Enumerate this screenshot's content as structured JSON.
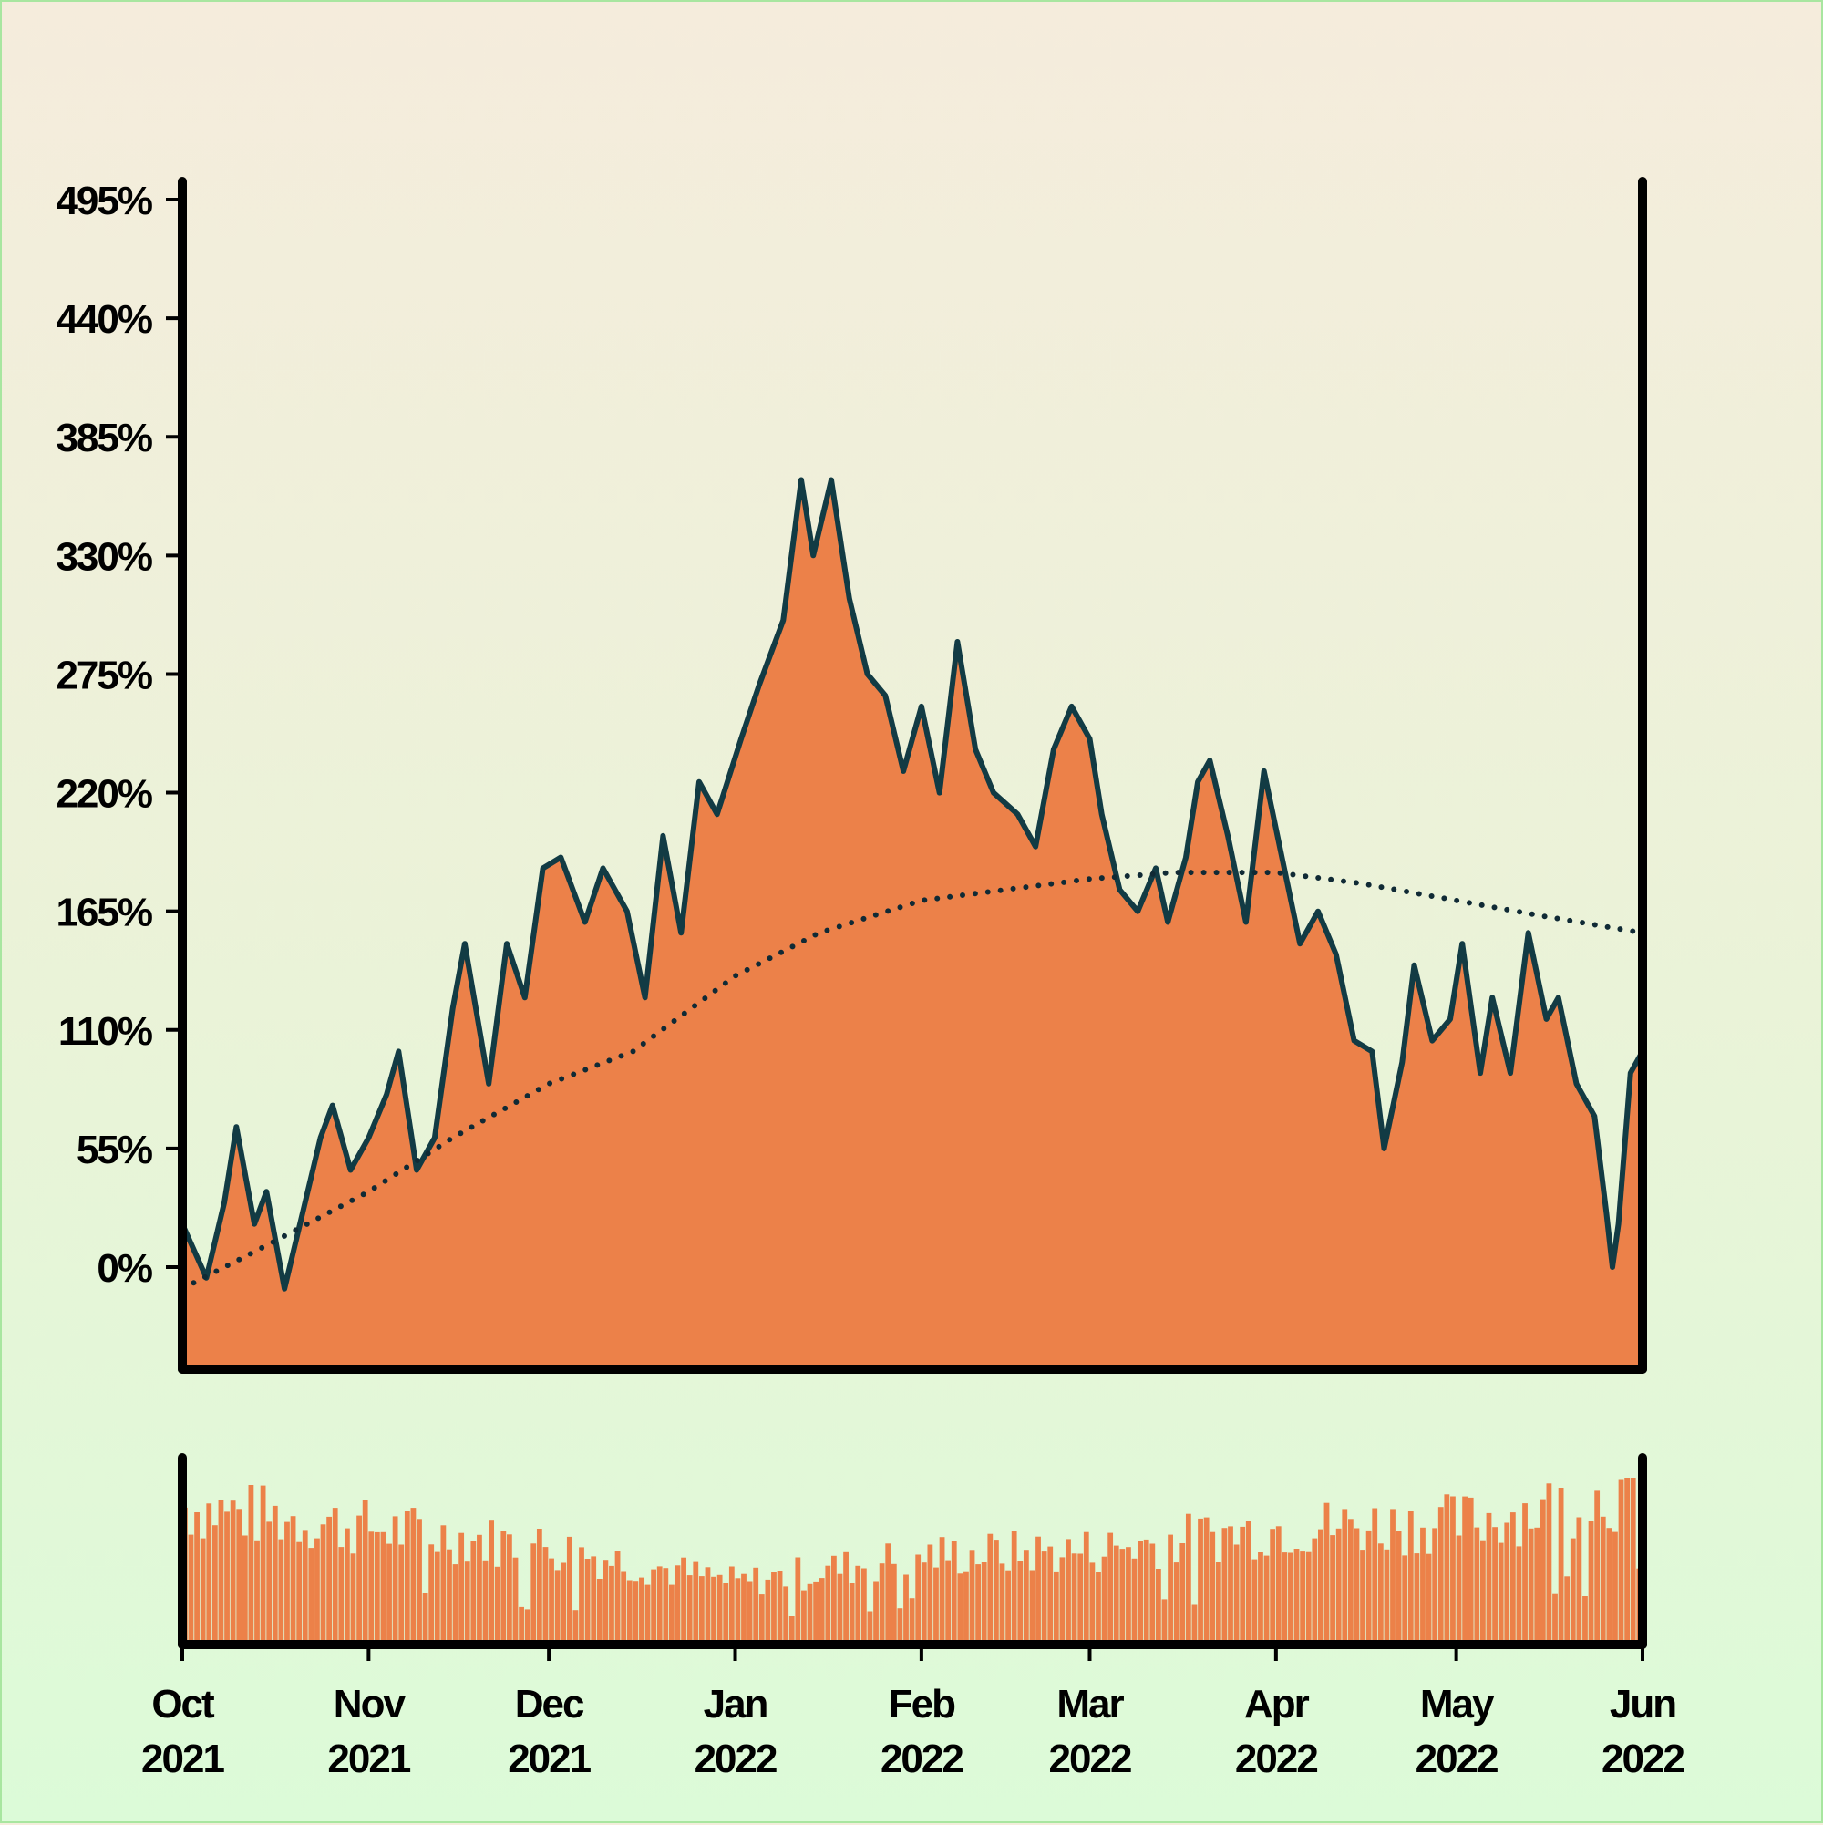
{
  "colors": {
    "area_fill": "#ec8149",
    "line": "#123b44",
    "trend": "#102a35",
    "axis": "#000000",
    "volume": "#ec8149"
  },
  "chart_data": {
    "type": "area",
    "title": "",
    "xlabel": "",
    "ylabel": "",
    "x_range": [
      "2021-10-01",
      "2022-06-01"
    ],
    "ylim": [
      -65,
      505
    ],
    "y_ticks": [
      {
        "value": 0,
        "label": "0%"
      },
      {
        "value": 55,
        "label": "55%"
      },
      {
        "value": 110,
        "label": "110%"
      },
      {
        "value": 165,
        "label": "165%"
      },
      {
        "value": 220,
        "label": "220%"
      },
      {
        "value": 275,
        "label": "275%"
      },
      {
        "value": 330,
        "label": "330%"
      },
      {
        "value": 385,
        "label": "385%"
      },
      {
        "value": 440,
        "label": "440%"
      },
      {
        "value": 495,
        "label": "495%"
      }
    ],
    "x_ticks": [
      {
        "date": "2021-10-01",
        "month": "Oct",
        "year": "2021"
      },
      {
        "date": "2021-11-01",
        "month": "Nov",
        "year": "2021"
      },
      {
        "date": "2021-12-01",
        "month": "Dec",
        "year": "2021"
      },
      {
        "date": "2022-01-01",
        "month": "Jan",
        "year": "2022"
      },
      {
        "date": "2022-02-01",
        "month": "Feb",
        "year": "2022"
      },
      {
        "date": "2022-03-01",
        "month": "Mar",
        "year": "2022"
      },
      {
        "date": "2022-04-01",
        "month": "Apr",
        "year": "2022"
      },
      {
        "date": "2022-05-01",
        "month": "May",
        "year": "2022"
      },
      {
        "date": "2022-06-01",
        "month": "Jun",
        "year": "2022"
      }
    ],
    "series": [
      {
        "kind": "cumulative_return_area",
        "points": [
          [
            "2021-10-01",
            20
          ],
          [
            "2021-10-05",
            -5
          ],
          [
            "2021-10-08",
            30
          ],
          [
            "2021-10-10",
            65
          ],
          [
            "2021-10-13",
            20
          ],
          [
            "2021-10-15",
            35
          ],
          [
            "2021-10-18",
            -10
          ],
          [
            "2021-10-21",
            25
          ],
          [
            "2021-10-24",
            60
          ],
          [
            "2021-10-26",
            75
          ],
          [
            "2021-10-29",
            45
          ],
          [
            "2021-11-01",
            60
          ],
          [
            "2021-11-04",
            80
          ],
          [
            "2021-11-06",
            100
          ],
          [
            "2021-11-09",
            45
          ],
          [
            "2021-11-12",
            60
          ],
          [
            "2021-11-15",
            120
          ],
          [
            "2021-11-17",
            150
          ],
          [
            "2021-11-21",
            85
          ],
          [
            "2021-11-24",
            150
          ],
          [
            "2021-11-27",
            125
          ],
          [
            "2021-11-30",
            185
          ],
          [
            "2021-12-03",
            190
          ],
          [
            "2021-12-07",
            160
          ],
          [
            "2021-12-10",
            185
          ],
          [
            "2021-12-14",
            165
          ],
          [
            "2021-12-17",
            125
          ],
          [
            "2021-12-20",
            200
          ],
          [
            "2021-12-23",
            155
          ],
          [
            "2021-12-26",
            225
          ],
          [
            "2021-12-29",
            210
          ],
          [
            "2022-01-02",
            245
          ],
          [
            "2022-01-05",
            270
          ],
          [
            "2022-01-09",
            300
          ],
          [
            "2022-01-12",
            365
          ],
          [
            "2022-01-14",
            330
          ],
          [
            "2022-01-17",
            365
          ],
          [
            "2022-01-20",
            310
          ],
          [
            "2022-01-23",
            275
          ],
          [
            "2022-01-26",
            265
          ],
          [
            "2022-01-29",
            230
          ],
          [
            "2022-02-01",
            260
          ],
          [
            "2022-02-04",
            220
          ],
          [
            "2022-02-07",
            290
          ],
          [
            "2022-02-10",
            240
          ],
          [
            "2022-02-13",
            220
          ],
          [
            "2022-02-17",
            210
          ],
          [
            "2022-02-20",
            195
          ],
          [
            "2022-02-23",
            240
          ],
          [
            "2022-02-26",
            260
          ],
          [
            "2022-03-01",
            245
          ],
          [
            "2022-03-03",
            210
          ],
          [
            "2022-03-06",
            175
          ],
          [
            "2022-03-09",
            165
          ],
          [
            "2022-03-12",
            185
          ],
          [
            "2022-03-14",
            160
          ],
          [
            "2022-03-17",
            190
          ],
          [
            "2022-03-19",
            225
          ],
          [
            "2022-03-21",
            235
          ],
          [
            "2022-03-24",
            200
          ],
          [
            "2022-03-27",
            160
          ],
          [
            "2022-03-30",
            230
          ],
          [
            "2022-04-02",
            190
          ],
          [
            "2022-04-05",
            150
          ],
          [
            "2022-04-08",
            165
          ],
          [
            "2022-04-11",
            145
          ],
          [
            "2022-04-14",
            105
          ],
          [
            "2022-04-17",
            100
          ],
          [
            "2022-04-19",
            55
          ],
          [
            "2022-04-22",
            95
          ],
          [
            "2022-04-24",
            140
          ],
          [
            "2022-04-27",
            105
          ],
          [
            "2022-04-30",
            115
          ],
          [
            "2022-05-02",
            150
          ],
          [
            "2022-05-05",
            90
          ],
          [
            "2022-05-07",
            125
          ],
          [
            "2022-05-10",
            90
          ],
          [
            "2022-05-13",
            155
          ],
          [
            "2022-05-16",
            115
          ],
          [
            "2022-05-18",
            125
          ],
          [
            "2022-05-21",
            85
          ],
          [
            "2022-05-24",
            70
          ],
          [
            "2022-05-26",
            25
          ],
          [
            "2022-05-27",
            0
          ],
          [
            "2022-05-28",
            20
          ],
          [
            "2022-05-30",
            90
          ],
          [
            "2022-06-01",
            100
          ]
        ]
      },
      {
        "kind": "trend_dotted",
        "points": [
          [
            "2021-10-01",
            -10
          ],
          [
            "2021-10-15",
            10
          ],
          [
            "2021-11-01",
            35
          ],
          [
            "2021-11-15",
            60
          ],
          [
            "2021-12-01",
            85
          ],
          [
            "2021-12-15",
            100
          ],
          [
            "2022-01-01",
            135
          ],
          [
            "2022-01-15",
            155
          ],
          [
            "2022-02-01",
            170
          ],
          [
            "2022-02-15",
            175
          ],
          [
            "2022-03-01",
            180
          ],
          [
            "2022-03-15",
            183
          ],
          [
            "2022-04-01",
            183
          ],
          [
            "2022-04-15",
            178
          ],
          [
            "2022-05-01",
            170
          ],
          [
            "2022-05-15",
            163
          ],
          [
            "2022-06-01",
            155
          ]
        ]
      }
    ],
    "volume_panel": {
      "type": "bar",
      "note_visible": false,
      "relative_levels_by_month": [
        [
          "2021-10-01",
          0.85
        ],
        [
          "2021-11-01",
          0.72
        ],
        [
          "2021-12-01",
          0.6
        ],
        [
          "2022-01-01",
          0.38
        ],
        [
          "2022-02-01",
          0.55
        ],
        [
          "2022-03-01",
          0.58
        ],
        [
          "2022-04-01",
          0.72
        ],
        [
          "2022-05-01",
          0.75
        ],
        [
          "2022-06-01",
          0.95
        ]
      ]
    }
  }
}
